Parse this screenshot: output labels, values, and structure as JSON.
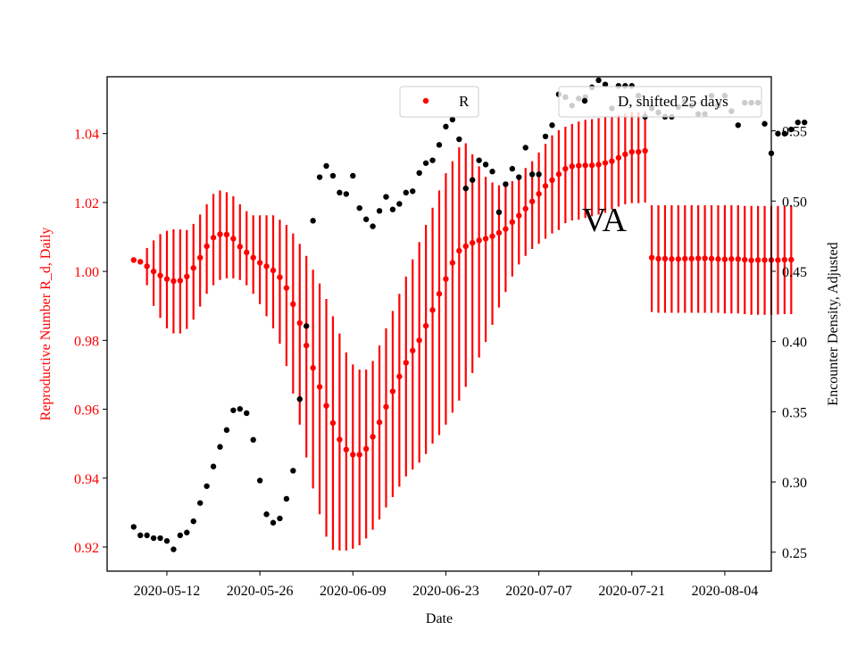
{
  "chart_data": {
    "type": "scatter",
    "annotation": "VA",
    "xlabel": "Date",
    "ylabel_left": "Reproductive Number R_d, Daily",
    "ylabel_right": "Encounter Density, Adjusted",
    "x_ticks": [
      "2020-05-12",
      "2020-05-26",
      "2020-06-09",
      "2020-06-23",
      "2020-07-07",
      "2020-07-21",
      "2020-08-04"
    ],
    "x_range": [
      "2020-05-03",
      "2020-08-11"
    ],
    "y_left_ticks": [
      "0.92",
      "0.94",
      "0.96",
      "0.98",
      "1.00",
      "1.02",
      "1.04"
    ],
    "y_left_range": [
      0.913,
      1.0565
    ],
    "y_right_ticks": [
      "0.25",
      "0.30",
      "0.35",
      "0.40",
      "0.45",
      "0.50",
      "0.55"
    ],
    "y_right_range": [
      0.2365,
      0.5885
    ],
    "colors": {
      "R": "#ff0000",
      "D": "#000000"
    },
    "legend": [
      {
        "label": "R",
        "color": "#ff0000",
        "placement": "upper-center"
      },
      {
        "label": "D, shifted 25 days",
        "color": "#000000",
        "placement": "upper-right"
      }
    ],
    "series": [
      {
        "name": "R",
        "axis": "left",
        "start_date": "2020-05-07",
        "values": [
          1.0033,
          1.0028,
          1.0015,
          1.0,
          0.9988,
          0.9978,
          0.9972,
          0.9973,
          0.9985,
          1.001,
          1.004,
          1.0073,
          1.0098,
          1.0108,
          1.0107,
          1.0095,
          1.0072,
          1.0055,
          1.004,
          1.0025,
          1.0015,
          1.0003,
          0.9983,
          0.9952,
          0.9905,
          0.985,
          0.9785,
          0.972,
          0.9665,
          0.961,
          0.956,
          0.9512,
          0.9483,
          0.9468,
          0.9468,
          0.9485,
          0.952,
          0.9562,
          0.9607,
          0.9652,
          0.9695,
          0.9735,
          0.977,
          0.98,
          0.9842,
          0.9888,
          0.9935,
          0.9978,
          1.0025,
          1.006,
          1.0073,
          1.0083,
          1.009,
          1.0095,
          1.0102,
          1.0112,
          1.0123,
          1.0143,
          1.0162,
          1.0182,
          1.0203,
          1.0225,
          1.0248,
          1.0265,
          1.0282,
          1.0298,
          1.0305,
          1.0307,
          1.0308,
          1.0308,
          1.031,
          1.0315,
          1.032,
          1.033,
          1.034,
          1.0347,
          1.0347,
          1.035,
          1.004,
          1.0037,
          1.0037,
          1.0036,
          1.0036,
          1.0037,
          1.0037,
          1.0038,
          1.0038,
          1.0037,
          1.0036,
          1.0035,
          1.0036,
          1.0036,
          1.0034,
          1.0032,
          1.0033,
          1.0033,
          1.0033,
          1.0033,
          1.0034,
          1.0034
        ],
        "lower": [
          1.0032,
          1.0026,
          0.996,
          0.99,
          0.9865,
          0.9835,
          0.982,
          0.982,
          0.9833,
          0.986,
          0.9898,
          0.9935,
          0.996,
          0.9975,
          0.998,
          0.998,
          0.9975,
          0.996,
          0.9935,
          0.9905,
          0.987,
          0.9835,
          0.979,
          0.9725,
          0.9645,
          0.9555,
          0.946,
          0.937,
          0.9295,
          0.923,
          0.9192,
          0.919,
          0.919,
          0.9195,
          0.9205,
          0.9225,
          0.925,
          0.928,
          0.9315,
          0.9345,
          0.9375,
          0.9405,
          0.9425,
          0.9445,
          0.947,
          0.95,
          0.9525,
          0.9555,
          0.959,
          0.9625,
          0.9665,
          0.9705,
          0.975,
          0.9795,
          0.9845,
          0.9895,
          0.994,
          0.9985,
          1.002,
          1.0045,
          1.0065,
          1.008,
          1.0095,
          1.011,
          1.012,
          1.014,
          1.0148,
          1.015,
          1.0155,
          1.016,
          1.0165,
          1.017,
          1.018,
          1.0188,
          1.0195,
          1.0198,
          1.0198,
          1.02,
          0.9882,
          0.988,
          0.988,
          0.988,
          0.988,
          0.988,
          0.988,
          0.988,
          0.988,
          0.988,
          0.988,
          0.9878,
          0.9878,
          0.9878,
          0.9876,
          0.9874,
          0.9874,
          0.9874,
          0.9874,
          0.9875,
          0.9876,
          0.9876
        ],
        "upper": [
          1.0034,
          1.003,
          1.0068,
          1.009,
          1.0108,
          1.0118,
          1.0122,
          1.0122,
          1.012,
          1.0138,
          1.0165,
          1.0195,
          1.0225,
          1.0235,
          1.023,
          1.0218,
          1.0195,
          1.0175,
          1.0163,
          1.0163,
          1.0163,
          1.0163,
          1.015,
          1.0135,
          1.011,
          1.008,
          1.0045,
          1.0005,
          0.9965,
          0.992,
          0.987,
          0.982,
          0.9765,
          0.973,
          0.9715,
          0.9715,
          0.974,
          0.9785,
          0.9835,
          0.9885,
          0.9935,
          0.9985,
          1.0035,
          1.0085,
          1.0135,
          1.0185,
          1.0235,
          1.0285,
          1.032,
          1.036,
          1.0372,
          1.034,
          1.0305,
          1.0275,
          1.0258,
          1.025,
          1.025,
          1.0262,
          1.028,
          1.03,
          1.032,
          1.0345,
          1.037,
          1.0395,
          1.041,
          1.042,
          1.0428,
          1.0435,
          1.044,
          1.0442,
          1.0445,
          1.0448,
          1.045,
          1.0455,
          1.0458,
          1.0462,
          1.0462,
          1.0465,
          1.0192,
          1.0192,
          1.0192,
          1.0192,
          1.0192,
          1.0192,
          1.0192,
          1.0192,
          1.0192,
          1.0192,
          1.0192,
          1.0192,
          1.0192,
          1.0192,
          1.019,
          1.019,
          1.019,
          1.019,
          1.019,
          1.019,
          1.019,
          1.019
        ]
      },
      {
        "name": "D, shifted 25 days",
        "axis": "right",
        "start_date": "2020-05-07",
        "values": [
          0.268,
          0.262,
          0.262,
          0.26,
          0.26,
          0.258,
          0.252,
          0.262,
          0.264,
          0.272,
          0.285,
          0.297,
          0.311,
          0.325,
          0.337,
          0.351,
          0.352,
          0.349,
          0.33,
          0.301,
          0.277,
          0.271,
          0.274,
          0.288,
          0.308,
          0.359,
          0.411,
          0.486,
          0.517,
          0.525,
          0.518,
          0.506,
          0.505,
          0.518,
          0.495,
          0.487,
          0.482,
          0.493,
          0.503,
          0.494,
          0.498,
          0.506,
          0.507,
          0.52,
          0.527,
          0.529,
          0.54,
          0.553,
          0.558,
          0.544,
          0.509,
          0.515,
          0.529,
          0.526,
          0.521,
          0.492,
          0.512,
          0.523,
          0.517,
          0.538,
          0.519,
          0.519,
          0.546,
          0.554,
          0.576,
          0.574,
          0.568,
          0.573,
          0.574,
          0.581,
          0.586,
          0.583,
          0.566,
          0.582,
          0.582,
          0.582,
          0.575,
          0.56,
          0.566,
          0.563,
          0.56,
          0.56,
          0.567,
          0.571,
          0.568,
          0.562,
          0.562,
          0.575,
          0.568,
          0.575,
          0.564,
          0.554,
          0.57,
          0.57,
          0.57,
          0.555,
          0.534,
          0.548,
          0.548,
          0.551,
          0.556,
          0.556
        ]
      }
    ]
  }
}
